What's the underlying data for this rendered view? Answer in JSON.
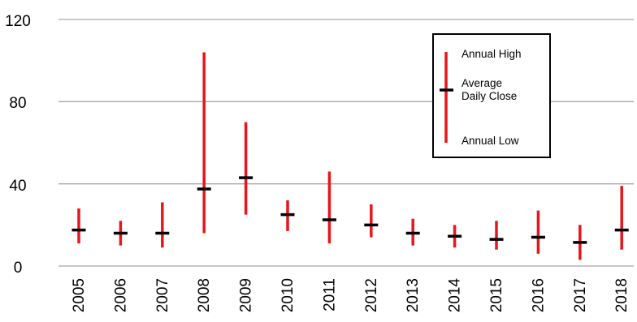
{
  "chart_data": {
    "type": "high-low-close",
    "categories": [
      "2005",
      "2006",
      "2007",
      "2008",
      "2009",
      "2010",
      "2011",
      "2012",
      "2013",
      "2014",
      "2015",
      "2016",
      "2017",
      "2018"
    ],
    "series": [
      {
        "name": "Annual High",
        "values": [
          28,
          22,
          31,
          104,
          70,
          32,
          46,
          30,
          23,
          20,
          22,
          27,
          20,
          39
        ]
      },
      {
        "name": "Average Daily Close",
        "values": [
          17.5,
          16,
          16,
          37.5,
          43,
          25,
          22.5,
          20,
          16,
          14.5,
          13,
          14,
          11.5,
          17.5
        ]
      },
      {
        "name": "Annual Low",
        "values": [
          11,
          10,
          9,
          16,
          25,
          17,
          11,
          14,
          10,
          9,
          8,
          6,
          3,
          8
        ]
      }
    ],
    "yticks": [
      "0",
      "40",
      "80",
      "120"
    ],
    "ylim": [
      0,
      120
    ],
    "grid": true,
    "legend_position": "top-right",
    "legend": {
      "high_label": "Annual High",
      "close_label_line1": "Average",
      "close_label_line2": "Daily Close",
      "low_label": "Annual Low"
    },
    "colors": {
      "range": "#e8161b",
      "close": "#000000",
      "grid": "#a6a6a6"
    }
  }
}
